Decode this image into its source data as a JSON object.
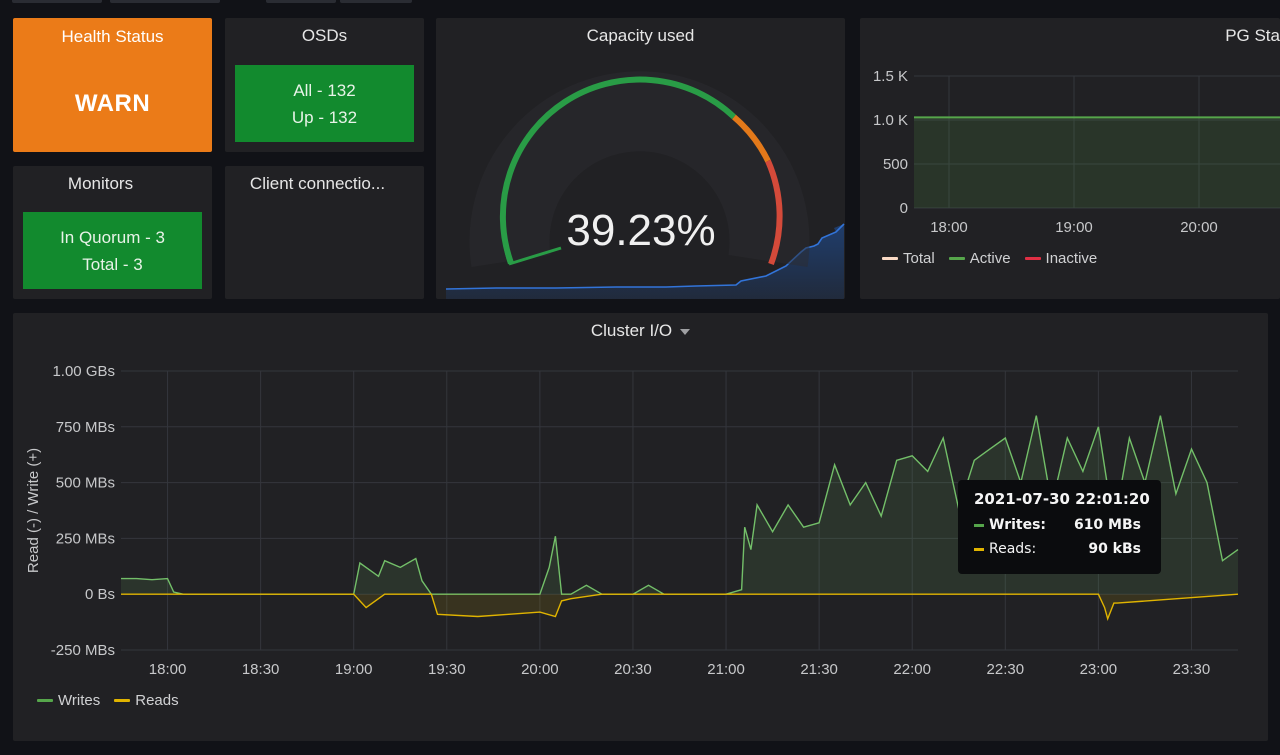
{
  "health": {
    "title": "Health Status",
    "value": "WARN"
  },
  "osds": {
    "title": "OSDs",
    "all": "All - 132",
    "up": "Up - 132"
  },
  "monitors": {
    "title": "Monitors",
    "quorum": "In Quorum - 3",
    "total": "Total - 3"
  },
  "client": {
    "title": "Client connectio..."
  },
  "capacity": {
    "title": "Capacity used",
    "value": "39.23%",
    "percent": 39.23
  },
  "pg": {
    "title": "PG Sta",
    "y_ticks": [
      "1.5 K",
      "1.0 K",
      "500",
      "0"
    ],
    "x_ticks": [
      "18:00",
      "19:00",
      "20:00"
    ],
    "legend": [
      {
        "name": "Total",
        "color": "#f9d9c4"
      },
      {
        "name": "Active",
        "color": "#56a64b"
      },
      {
        "name": "Inactive",
        "color": "#e02f44"
      }
    ]
  },
  "cluster_io": {
    "title": "Cluster I/O",
    "ylabel": "Read (-) / Write (+)",
    "y_ticks": [
      "1.00 GBs",
      "750 MBs",
      "500 MBs",
      "250 MBs",
      "0 Bs",
      "-250 MBs"
    ],
    "x_ticks": [
      "18:00",
      "18:30",
      "19:00",
      "19:30",
      "20:00",
      "20:30",
      "21:00",
      "21:30",
      "22:00",
      "22:30",
      "23:00",
      "23:30"
    ],
    "legend": [
      {
        "name": "Writes",
        "color": "#56a64b"
      },
      {
        "name": "Reads",
        "color": "#e0b400"
      }
    ],
    "tooltip": {
      "time": "2021-07-30 22:01:20",
      "writes_label": "Writes:",
      "writes_value": "610 MBs",
      "reads_label": "Reads:",
      "reads_value": "90 kBs"
    }
  },
  "chart_data": [
    {
      "type": "line",
      "title": "Cluster I/O",
      "ylabel": "Read (-) / Write (+)",
      "ylim": [
        -250,
        1000
      ],
      "unit": "MBs",
      "x_start": "17:45",
      "x_end": "23:45",
      "series": [
        {
          "name": "Writes",
          "x": [
            "17:45",
            "17:50",
            "17:55",
            "18:00",
            "18:02",
            "18:05",
            "18:30",
            "18:45",
            "19:00",
            "19:02",
            "19:04",
            "19:08",
            "19:10",
            "19:15",
            "19:20",
            "19:22",
            "19:25",
            "19:30",
            "19:40",
            "19:50",
            "20:00",
            "20:03",
            "20:05",
            "20:07",
            "20:10",
            "20:15",
            "20:20",
            "20:30",
            "20:35",
            "20:40",
            "20:45",
            "20:50",
            "21:00",
            "21:05",
            "21:06",
            "21:08",
            "21:10",
            "21:15",
            "21:20",
            "21:25",
            "21:30",
            "21:35",
            "21:40",
            "21:45",
            "21:50",
            "21:55",
            "22:00",
            "22:05",
            "22:10",
            "22:15",
            "22:20",
            "22:25",
            "22:30",
            "22:35",
            "22:40",
            "22:45",
            "22:50",
            "22:55",
            "23:00",
            "23:05",
            "23:10",
            "23:15",
            "23:20",
            "23:25",
            "23:30",
            "23:35",
            "23:40",
            "23:45"
          ],
          "values": [
            70,
            70,
            65,
            70,
            10,
            0,
            0,
            0,
            0,
            140,
            120,
            80,
            150,
            120,
            160,
            60,
            0,
            0,
            0,
            0,
            0,
            120,
            260,
            0,
            0,
            40,
            0,
            0,
            40,
            0,
            0,
            0,
            0,
            20,
            300,
            200,
            400,
            280,
            400,
            300,
            320,
            580,
            400,
            500,
            350,
            600,
            620,
            550,
            700,
            380,
            600,
            650,
            700,
            500,
            800,
            400,
            700,
            550,
            750,
            300,
            700,
            500,
            800,
            450,
            650,
            500,
            150,
            200
          ]
        },
        {
          "name": "Reads",
          "x": [
            "17:45",
            "18:30",
            "19:00",
            "19:02",
            "19:04",
            "19:10",
            "19:20",
            "19:25",
            "19:27",
            "19:40",
            "19:50",
            "20:00",
            "20:05",
            "20:07",
            "20:10",
            "20:20",
            "20:30",
            "21:00",
            "22:00",
            "23:00",
            "23:02",
            "23:03",
            "23:05",
            "23:06",
            "23:45"
          ],
          "values": [
            0,
            0,
            0,
            -30,
            -60,
            0,
            0,
            0,
            -90,
            -100,
            -90,
            -80,
            -100,
            -30,
            -20,
            0,
            0,
            0,
            0,
            0,
            -60,
            -110,
            -40,
            -40,
            0
          ]
        }
      ]
    },
    {
      "type": "line",
      "title": "PG Sta",
      "ylim": [
        0,
        1500
      ],
      "x_ticks": [
        "18:00",
        "19:00",
        "20:00"
      ],
      "series": [
        {
          "name": "Total",
          "values": [
            1030,
            1030,
            1030,
            1030
          ]
        },
        {
          "name": "Active",
          "values": [
            1030,
            1030,
            1030,
            1030
          ]
        },
        {
          "name": "Inactive",
          "values": [
            0,
            0,
            0,
            0
          ]
        }
      ]
    }
  ]
}
